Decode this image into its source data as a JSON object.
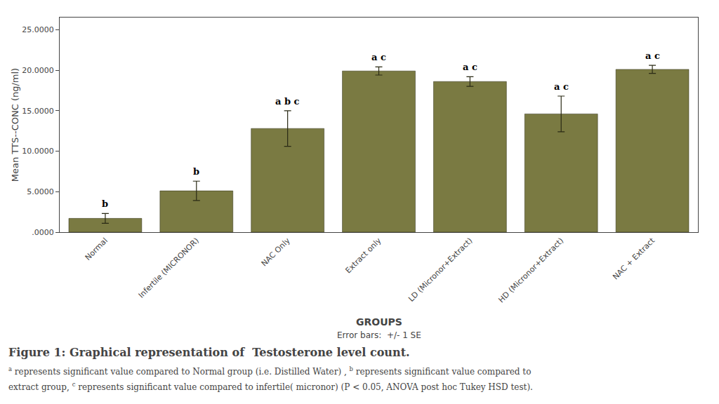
{
  "chart_data": {
    "type": "bar",
    "categories": [
      "Normal",
      "Infertile (MICRONOR)",
      "NAC Only",
      "Extract only",
      "LD (Micronor+Extract)",
      "HD (Micronor+Extract)",
      "NAC + Extract"
    ],
    "values": [
      1.7,
      5.1,
      12.8,
      19.9,
      18.6,
      14.6,
      20.1
    ],
    "errors": [
      0.6,
      1.2,
      2.2,
      0.5,
      0.6,
      2.2,
      0.5
    ],
    "annotations": [
      "b",
      "b",
      "a b c",
      "a c",
      "a c",
      "a c",
      "a c"
    ],
    "color": "#7a7a42",
    "ylabel": "Mean TTS--CONC (ng/ml)",
    "xlabel": "GROUPS",
    "ylim": [
      0,
      26.5
    ],
    "yticks": [
      {
        "value": 0,
        "label": ".0000"
      },
      {
        "value": 5,
        "label": "5.0000"
      },
      {
        "value": 10,
        "label": "10.0000"
      },
      {
        "value": 15,
        "label": "15.0000"
      },
      {
        "value": 20,
        "label": "20.0000"
      },
      {
        "value": 25,
        "label": "25.0000"
      }
    ],
    "grid": false,
    "error_bar_note": "Error bars:  +/- 1 SE",
    "caption": "Figure 1: Graphical representation of  Testosterone level count.",
    "caption_lines": [
      [
        {
          "sup": "a"
        },
        {
          "text": "represents significant value compared to Normal group (i.e. Distilled Water) ,"
        },
        {
          "sup": "b"
        },
        {
          "text": "represents significant value compared to"
        }
      ],
      [
        {
          "text": "extract group,"
        },
        {
          "sup": "c"
        },
        {
          "text": "represents significant value compared to infertile( micronor) (P < 0.05, ANOVA post hoc Tukey HSD test)."
        }
      ]
    ]
  }
}
